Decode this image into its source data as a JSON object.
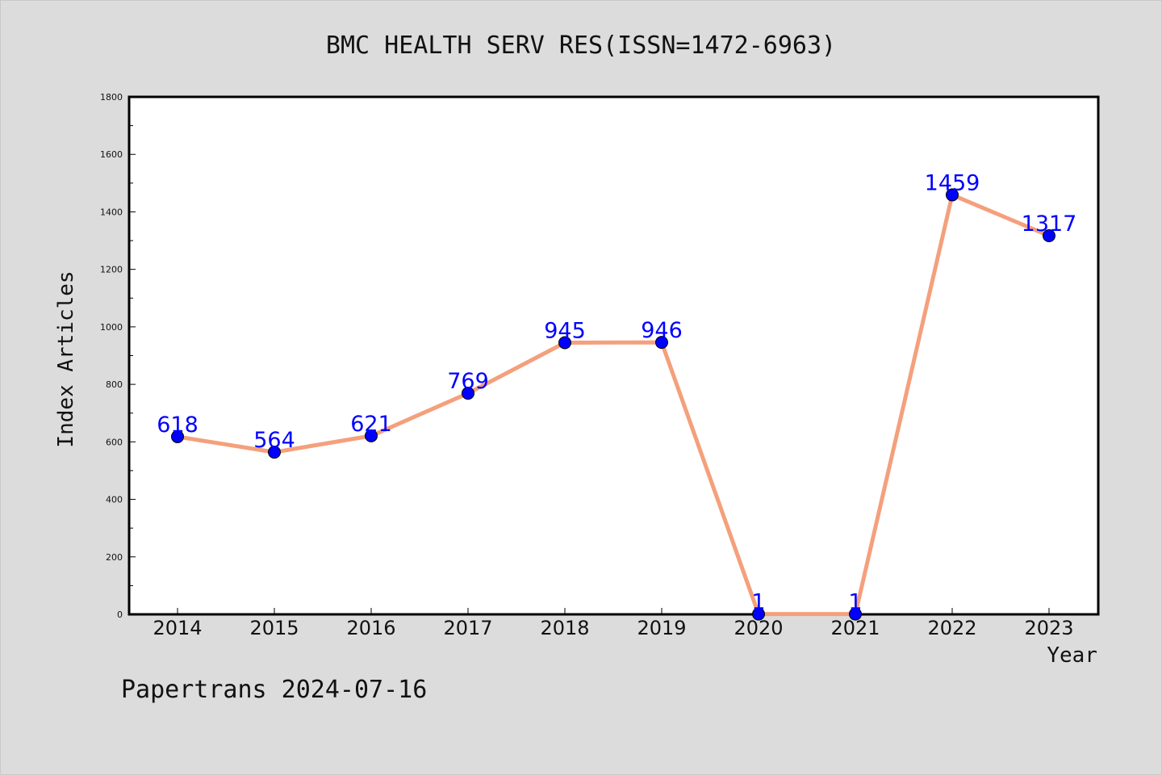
{
  "title": "BMC HEALTH SERV RES(ISSN=1472-6963)",
  "footer": "Papertrans 2024-07-16",
  "colors": {
    "background": "#dcdcdc",
    "plot_bg": "#ffffff",
    "line": "#f4a07c",
    "marker": "#0000ff",
    "label": "#0000ff"
  },
  "chart_data": {
    "type": "line",
    "title": "BMC HEALTH SERV RES(ISSN=1472-6963)",
    "xlabel": "Year",
    "ylabel": "Index Articles",
    "categories": [
      "2014",
      "2015",
      "2016",
      "2017",
      "2018",
      "2019",
      "2020",
      "2021",
      "2022",
      "2023"
    ],
    "series": [
      {
        "values": [
          618,
          564,
          621,
          769,
          945,
          946,
          1,
          1,
          1459,
          1317
        ]
      }
    ],
    "ylim": [
      0,
      1800
    ],
    "yticks": [
      0,
      200,
      400,
      600,
      800,
      1000,
      1200,
      1400,
      1600,
      1800
    ],
    "grid": false,
    "legend": "none"
  }
}
